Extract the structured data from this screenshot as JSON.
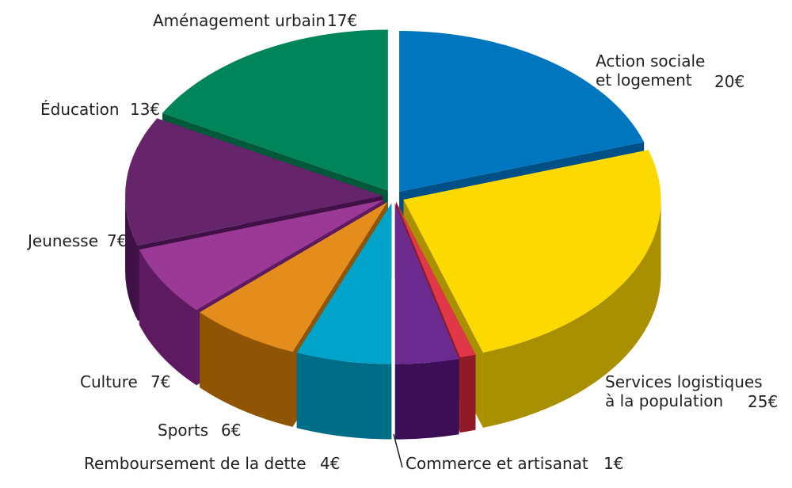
{
  "chart_data": {
    "type": "pie",
    "three_d": true,
    "exploded": true,
    "title": "",
    "currency": "€",
    "slices": [
      {
        "label": "Action sociale et logement",
        "label_lines": [
          "Action sociale",
          "et logement"
        ],
        "value": 20,
        "value_label": "20€",
        "color": "#0076be",
        "side_color": "#004f86"
      },
      {
        "label": "Services logistiques à la population",
        "label_lines": [
          "Services logistiques",
          "à la population"
        ],
        "value": 25,
        "value_label": "25€",
        "color": "#fcd900",
        "side_color": "#a99000"
      },
      {
        "label": "Commerce et artisanat",
        "label_lines": [
          "Commerce et artisanat"
        ],
        "value": 1,
        "value_label": "1€",
        "color": "#e03848",
        "side_color": "#8e1b26"
      },
      {
        "label": "Remboursement de la dette",
        "label_lines": [
          "Remboursement de la dette"
        ],
        "value": 4,
        "value_label": "4€",
        "color": "#6a2a8e",
        "side_color": "#3c0e56"
      },
      {
        "label": "Sports",
        "label_lines": [
          "Sports"
        ],
        "value": 6,
        "value_label": "6€",
        "color": "#00a3c9",
        "side_color": "#006d88"
      },
      {
        "label": "Culture",
        "label_lines": [
          "Culture"
        ],
        "value": 7,
        "value_label": "7€",
        "color": "#e48c1c",
        "side_color": "#8f5404"
      },
      {
        "label": "Jeunesse",
        "label_lines": [
          "Jeunesse"
        ],
        "value": 7,
        "value_label": "7€",
        "color": "#9b3a96",
        "side_color": "#5e1a60"
      },
      {
        "label": "Éducation",
        "label_lines": [
          "Éducation"
        ],
        "value": 13,
        "value_label": "13€",
        "color": "#66246a",
        "side_color": "#3f1146"
      },
      {
        "label": "Aménagement urbain",
        "label_lines": [
          "Aménagement urbain"
        ],
        "value": 17,
        "value_label": "17€",
        "color": "#00845a",
        "side_color": "#005a3a"
      }
    ]
  }
}
